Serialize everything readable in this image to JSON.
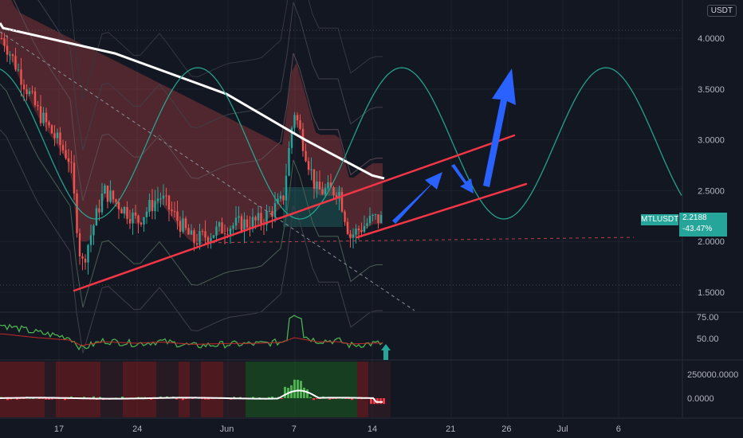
{
  "quote_currency": "USDT",
  "symbol": "MTLUSDT",
  "last_price": "2.2188",
  "change_percent": "-43.47%",
  "colors": {
    "background": "#131722",
    "bull": "#26a69a",
    "bear": "#ef5350",
    "trendline": "#f23645",
    "arrow": "#2962ff",
    "ma": "#ffffff",
    "wave": "#22ab94"
  },
  "chart_data": [
    {
      "type": "candlestick",
      "price_axis_ticks": [
        "4.0000",
        "3.5000",
        "3.0000",
        "2.5000",
        "2.0000",
        "1.5000"
      ],
      "ylim": [
        1.25,
        4.3
      ],
      "time_axis_ticks": [
        "17",
        "24",
        "Jun",
        "7",
        "14",
        "21",
        "26",
        "Jul",
        "6"
      ],
      "approx_path": [
        {
          "date": "May 12",
          "price": 4.0
        },
        {
          "date": "May 15",
          "price": 3.3
        },
        {
          "date": "May 18",
          "price": 2.8
        },
        {
          "date": "May 19",
          "price": 1.75
        },
        {
          "date": "May 21",
          "price": 2.5
        },
        {
          "date": "May 24",
          "price": 2.2
        },
        {
          "date": "May 26",
          "price": 2.45
        },
        {
          "date": "May 29",
          "price": 2.0
        },
        {
          "date": "Jun 1",
          "price": 2.15
        },
        {
          "date": "Jun 4",
          "price": 2.2
        },
        {
          "date": "Jun 6",
          "price": 2.4
        },
        {
          "date": "Jun 7",
          "price": 3.3
        },
        {
          "date": "Jun 9",
          "price": 2.5
        },
        {
          "date": "Jun 11",
          "price": 2.5
        },
        {
          "date": "Jun 12",
          "price": 2.05
        },
        {
          "date": "Jun 14",
          "price": 2.22
        }
      ],
      "moving_average": [
        {
          "date": "May 12",
          "price": 4.1
        },
        {
          "date": "May 22",
          "price": 3.85
        },
        {
          "date": "Jun 1",
          "price": 3.45
        },
        {
          "date": "Jun 8",
          "price": 3.0
        },
        {
          "date": "Jun 14",
          "price": 2.65
        }
      ],
      "support_level": 2.03
    },
    {
      "type": "line",
      "title": "",
      "axis_ticks": [
        "75.00",
        "50.00"
      ],
      "ylim": [
        20,
        85
      ],
      "signal": "up-arrow"
    },
    {
      "type": "histogram",
      "title": "",
      "axis_ticks": [
        "250000.0000",
        "0.0000"
      ],
      "ylim": [
        -250000,
        450000
      ]
    }
  ]
}
